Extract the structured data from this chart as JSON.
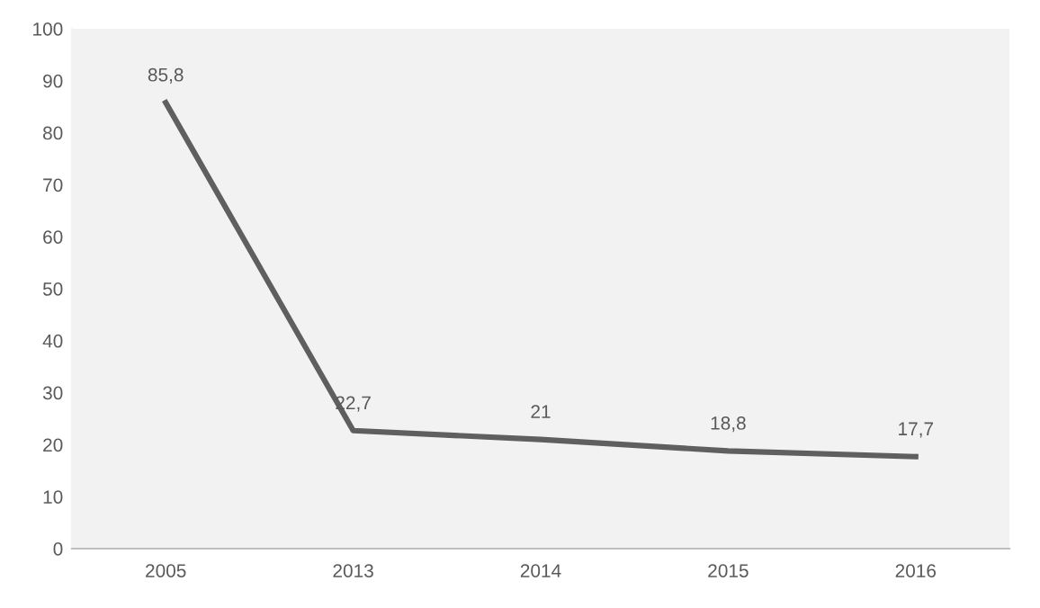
{
  "chart_data": {
    "type": "line",
    "categories": [
      "2005",
      "2013",
      "2014",
      "2015",
      "2016"
    ],
    "series": [
      {
        "color": "#5f5f5f",
        "values": [
          85.8,
          22.7,
          21,
          18.8,
          17.7
        ],
        "value_labels": [
          "85,8",
          "22,7",
          "21",
          "18,8",
          "17,7"
        ]
      }
    ],
    "ylim": [
      0,
      100
    ],
    "yticks": [
      0,
      10,
      20,
      30,
      40,
      50,
      60,
      70,
      80,
      90,
      100
    ],
    "grid": false,
    "legend": false,
    "marker": "none",
    "line_style": "solid"
  }
}
